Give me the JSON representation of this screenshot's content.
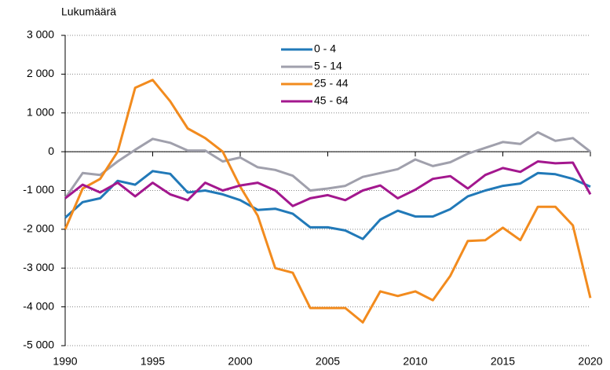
{
  "chart_data": {
    "type": "line",
    "y_axis_label": "Lukumäärä",
    "x": [
      1990,
      1991,
      1992,
      1993,
      1994,
      1995,
      1996,
      1997,
      1998,
      1999,
      2000,
      2001,
      2002,
      2003,
      2004,
      2005,
      2006,
      2007,
      2008,
      2009,
      2010,
      2011,
      2012,
      2013,
      2014,
      2015,
      2016,
      2017,
      2018,
      2019,
      2020
    ],
    "series": [
      {
        "name": "0 - 4",
        "color": "#2179b8",
        "values": [
          -1700,
          -1300,
          -1200,
          -750,
          -850,
          -500,
          -570,
          -1050,
          -1000,
          -1100,
          -1250,
          -1500,
          -1470,
          -1600,
          -1950,
          -1950,
          -2030,
          -2250,
          -1750,
          -1520,
          -1670,
          -1670,
          -1480,
          -1150,
          -1000,
          -880,
          -820,
          -550,
          -580,
          -700,
          -900
        ]
      },
      {
        "name": "5 - 14",
        "color": "#a0a0ac",
        "values": [
          -1200,
          -550,
          -600,
          -250,
          50,
          330,
          230,
          30,
          30,
          -250,
          -150,
          -400,
          -470,
          -620,
          -1000,
          -950,
          -880,
          -650,
          -550,
          -450,
          -200,
          -370,
          -270,
          -50,
          100,
          250,
          200,
          500,
          280,
          350,
          0
        ]
      },
      {
        "name": "25 - 44",
        "color": "#f28b1e",
        "values": [
          -2000,
          -950,
          -700,
          0,
          1650,
          1850,
          1300,
          600,
          350,
          0,
          -900,
          -1650,
          -3000,
          -3120,
          -4030,
          -4030,
          -4030,
          -4400,
          -3600,
          -3720,
          -3600,
          -3830,
          -3200,
          -2300,
          -2280,
          -1960,
          -2280,
          -1420,
          -1420,
          -1900,
          -3770
        ]
      },
      {
        "name": "45 - 64",
        "color": "#a3178e",
        "values": [
          -1200,
          -850,
          -1050,
          -800,
          -1150,
          -800,
          -1100,
          -1250,
          -800,
          -1000,
          -870,
          -800,
          -1000,
          -1400,
          -1200,
          -1120,
          -1250,
          -1000,
          -870,
          -1200,
          -980,
          -700,
          -630,
          -950,
          -600,
          -420,
          -520,
          -250,
          -300,
          -280,
          -1100
        ]
      }
    ],
    "xlim": [
      1990,
      2020
    ],
    "xticks": [
      1990,
      1995,
      2000,
      2005,
      2010,
      2015,
      2020
    ],
    "ylim": [
      -5000,
      3000
    ],
    "yticks": [
      {
        "value": -5000,
        "label": "-5 000"
      },
      {
        "value": -4000,
        "label": "-4 000"
      },
      {
        "value": -3000,
        "label": "-3 000"
      },
      {
        "value": -2000,
        "label": "-2 000"
      },
      {
        "value": -1000,
        "label": "-1 000"
      },
      0,
      {
        "value": 1000,
        "label": "1 000"
      },
      {
        "value": 2000,
        "label": "2 000"
      },
      {
        "value": 3000,
        "label": "3 000"
      }
    ],
    "grid": true,
    "legend_position": "top"
  }
}
